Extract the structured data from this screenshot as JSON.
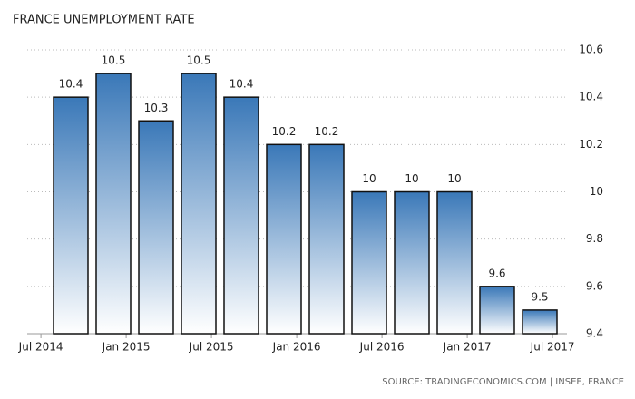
{
  "chart_data": {
    "type": "bar",
    "title": "FRANCE UNEMPLOYMENT RATE",
    "values": [
      10.4,
      10.5,
      10.3,
      10.5,
      10.4,
      10.2,
      10.2,
      10,
      10,
      10,
      9.6,
      9.5
    ],
    "xticks": [
      "Jul 2014",
      "Jan 2015",
      "Jul 2015",
      "Jan 2016",
      "Jul 2016",
      "Jan 2017",
      "Jul 2017"
    ],
    "color": "#3a78b8",
    "ylim": [
      9.4,
      10.6
    ],
    "yticks": [
      9.4,
      9.6,
      9.8,
      10,
      10.2,
      10.4,
      10.6
    ],
    "grid": true,
    "source": "SOURCE: TRADINGECONOMICS.COM | INSEE, FRANCE"
  }
}
